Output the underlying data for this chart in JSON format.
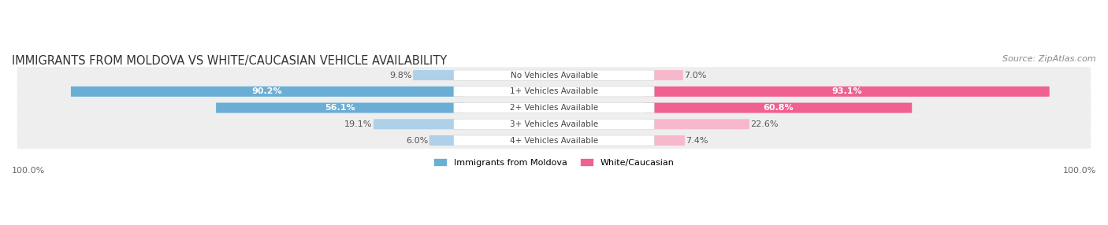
{
  "title": "IMMIGRANTS FROM MOLDOVA VS WHITE/CAUCASIAN VEHICLE AVAILABILITY",
  "source": "Source: ZipAtlas.com",
  "categories": [
    "No Vehicles Available",
    "1+ Vehicles Available",
    "2+ Vehicles Available",
    "3+ Vehicles Available",
    "4+ Vehicles Available"
  ],
  "moldova_values": [
    9.8,
    90.2,
    56.1,
    19.1,
    6.0
  ],
  "white_values": [
    7.0,
    93.1,
    60.8,
    22.6,
    7.4
  ],
  "moldova_color_large": "#6aaed6",
  "moldova_color_small": "#aed0e8",
  "white_color_large": "#f06090",
  "white_color_small": "#f8b8cc",
  "moldova_label": "Immigrants from Moldova",
  "white_label": "White/Caucasian",
  "max_value": 100.0,
  "background_color": "#ffffff",
  "row_bg_color": "#f0f0f0",
  "title_fontsize": 10.5,
  "source_fontsize": 8,
  "label_fontsize": 8,
  "value_fontsize": 8,
  "bar_height": 0.62,
  "center_label_color": "#444444",
  "large_threshold": 0.15
}
